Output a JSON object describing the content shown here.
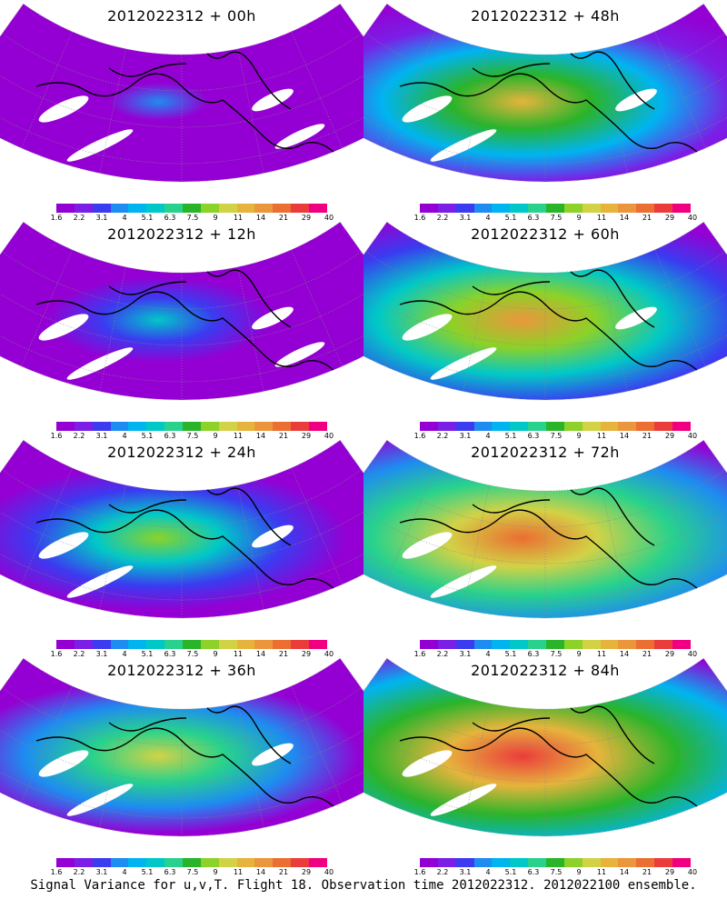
{
  "panels": [
    {
      "title": "2012022312 + 00h",
      "level": 0.22
    },
    {
      "title": "2012022312 + 48h",
      "level": 0.72
    },
    {
      "title": "2012022312 + 12h",
      "level": 0.38
    },
    {
      "title": "2012022312 + 60h",
      "level": 0.78
    },
    {
      "title": "2012022312 + 24h",
      "level": 0.55
    },
    {
      "title": "2012022312 + 72h",
      "level": 0.84
    },
    {
      "title": "2012022312 + 36h",
      "level": 0.65
    },
    {
      "title": "2012022312 + 84h",
      "level": 0.9
    }
  ],
  "legend": {
    "colors": [
      "#9400d3",
      "#7b1ee6",
      "#3b3bf0",
      "#1e8cf0",
      "#00b4f0",
      "#00c8c8",
      "#28d28c",
      "#2ab42a",
      "#8cd228",
      "#d2d246",
      "#e6b43c",
      "#eb963c",
      "#eb6e32",
      "#eb3c3c",
      "#f00080"
    ],
    "ticks": [
      "1.6",
      "2.2",
      "3.1",
      "4",
      "5.1",
      "6.3",
      "7.5",
      "9",
      "11",
      "14",
      "21",
      "29",
      "40"
    ]
  },
  "caption": "Signal Variance for u,v,T. Flight 18. Observation time 2012022312. 2012022100 ensemble."
}
